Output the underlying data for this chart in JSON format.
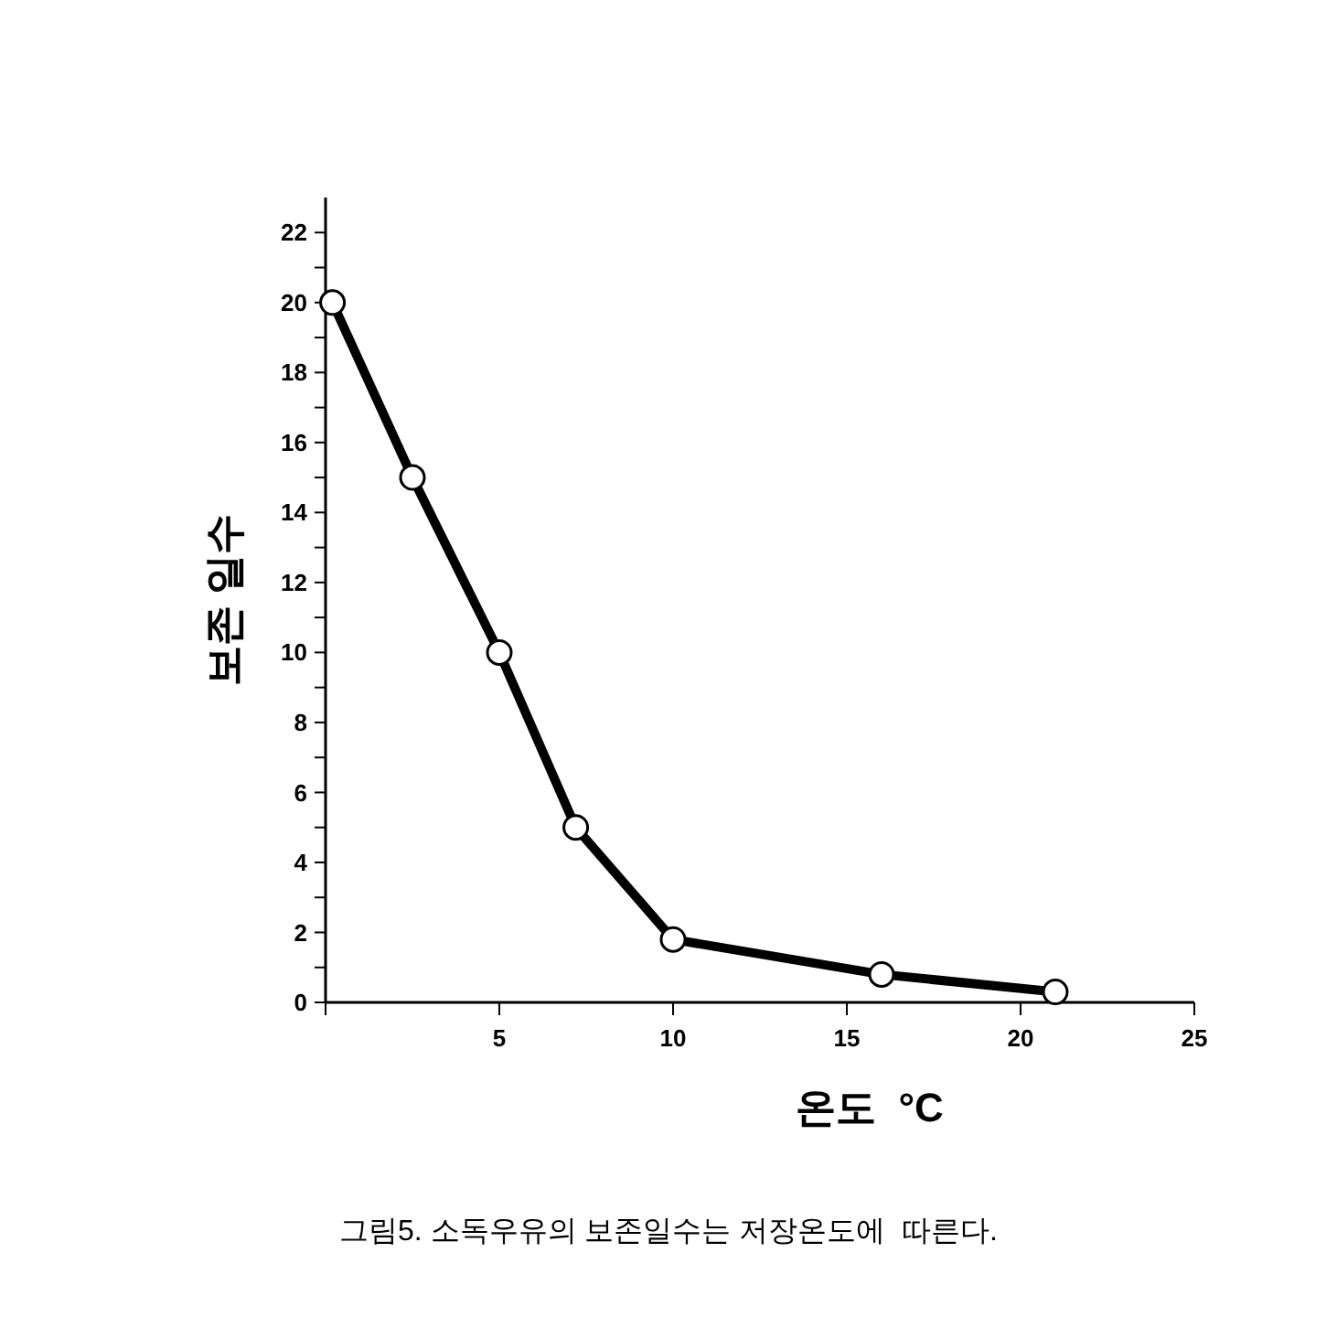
{
  "chart_data": {
    "type": "line",
    "xlabel": "온도  °C",
    "ylabel": "보존 일수",
    "annotations": [
      "그림5. 소독우유의 보존일수는 저장온도에  따른다."
    ],
    "x": [
      0.2,
      2.5,
      5,
      7.2,
      10,
      16,
      21
    ],
    "series": [
      {
        "color": "#000000",
        "values": [
          20,
          15,
          10,
          5,
          1.8,
          0.8,
          0.3
        ]
      }
    ],
    "xlim": [
      0,
      25
    ],
    "xticks": [
      {
        "value": 0,
        "label": null
      },
      5,
      10,
      15,
      20,
      25
    ],
    "ylim": [
      0,
      23
    ],
    "yticks": [
      0,
      {
        "value": 1,
        "label": null
      },
      2,
      {
        "value": 3,
        "label": null
      },
      4,
      {
        "value": 5,
        "label": null
      },
      6,
      {
        "value": 7,
        "label": null
      },
      8,
      {
        "value": 9,
        "label": null
      },
      10,
      {
        "value": 11,
        "label": null
      },
      12,
      {
        "value": 13,
        "label": null
      },
      14,
      {
        "value": 15,
        "label": null
      },
      16,
      {
        "value": 17,
        "label": null
      },
      18,
      {
        "value": 19,
        "label": null
      },
      20,
      {
        "value": 21,
        "label": null
      },
      22
    ],
    "grid": false,
    "marker": "circle",
    "line_style": "solid"
  }
}
